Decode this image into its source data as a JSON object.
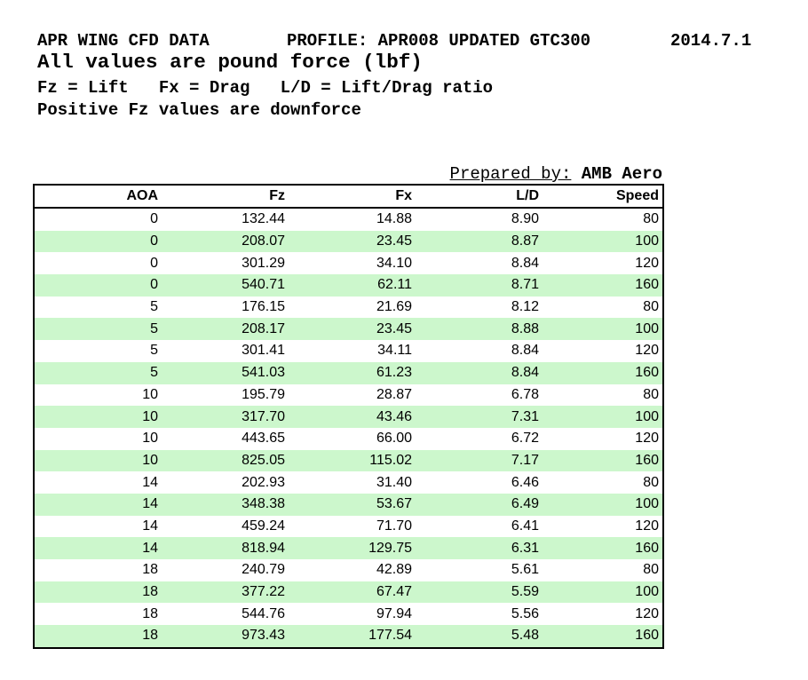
{
  "header": {
    "line1_left": "APR WING CFD DATA",
    "line1_mid": "PROFILE: APR008 UPDATED GTC300",
    "line1_right": "2014.7.1",
    "line2": "All values are pound force (lbf)",
    "line3": "Fz = Lift   Fx = Drag   L/D = Lift/Drag ratio",
    "line4": "Positive Fz values are downforce",
    "prepared_label": "Prepared by:",
    "prepared_value": "AMB Aero"
  },
  "colors": {
    "row_alt_green": "#ccf7cc",
    "border": "#000000",
    "text": "#000000",
    "background": "#ffffff"
  },
  "table": {
    "columns": [
      "AOA",
      "Fz",
      "Fx",
      "L/D",
      "Speed"
    ],
    "rows": [
      [
        "0",
        "132.44",
        "14.88",
        "8.90",
        "80"
      ],
      [
        "0",
        "208.07",
        "23.45",
        "8.87",
        "100"
      ],
      [
        "0",
        "301.29",
        "34.10",
        "8.84",
        "120"
      ],
      [
        "0",
        "540.71",
        "62.11",
        "8.71",
        "160"
      ],
      [
        "5",
        "176.15",
        "21.69",
        "8.12",
        "80"
      ],
      [
        "5",
        "208.17",
        "23.45",
        "8.88",
        "100"
      ],
      [
        "5",
        "301.41",
        "34.11",
        "8.84",
        "120"
      ],
      [
        "5",
        "541.03",
        "61.23",
        "8.84",
        "160"
      ],
      [
        "10",
        "195.79",
        "28.87",
        "6.78",
        "80"
      ],
      [
        "10",
        "317.70",
        "43.46",
        "7.31",
        "100"
      ],
      [
        "10",
        "443.65",
        "66.00",
        "6.72",
        "120"
      ],
      [
        "10",
        "825.05",
        "115.02",
        "7.17",
        "160"
      ],
      [
        "14",
        "202.93",
        "31.40",
        "6.46",
        "80"
      ],
      [
        "14",
        "348.38",
        "53.67",
        "6.49",
        "100"
      ],
      [
        "14",
        "459.24",
        "71.70",
        "6.41",
        "120"
      ],
      [
        "14",
        "818.94",
        "129.75",
        "6.31",
        "160"
      ],
      [
        "18",
        "240.79",
        "42.89",
        "5.61",
        "80"
      ],
      [
        "18",
        "377.22",
        "67.47",
        "5.59",
        "100"
      ],
      [
        "18",
        "544.76",
        "97.94",
        "5.56",
        "120"
      ],
      [
        "18",
        "973.43",
        "177.54",
        "5.48",
        "160"
      ]
    ]
  }
}
